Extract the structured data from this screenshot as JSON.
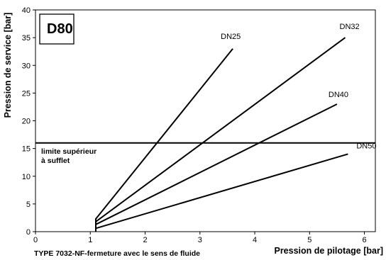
{
  "chart_data": {
    "type": "line",
    "box_title": "D80",
    "xlabel": "Pression de pilotage [bar]",
    "ylabel": "Pression de service [bar]",
    "footer": "TYPE 7032-NF-fermeture avec le sens de fluide",
    "xlim": [
      0,
      6.2
    ],
    "ylim": [
      0,
      40
    ],
    "x_ticks": [
      0,
      1,
      2,
      3,
      4,
      5,
      6
    ],
    "y_ticks": [
      0,
      5,
      10,
      15,
      20,
      25,
      30,
      35,
      40
    ],
    "grid": false,
    "series": [
      {
        "name": "DN25",
        "points": [
          [
            1.1,
            0
          ],
          [
            1.1,
            2.3
          ],
          [
            3.6,
            33
          ]
        ]
      },
      {
        "name": "DN32",
        "points": [
          [
            1.1,
            0
          ],
          [
            1.1,
            1.8
          ],
          [
            5.65,
            35
          ]
        ]
      },
      {
        "name": "DN40",
        "points": [
          [
            1.1,
            0
          ],
          [
            1.1,
            1.3
          ],
          [
            5.5,
            23
          ]
        ]
      },
      {
        "name": "DN50",
        "points": [
          [
            1.1,
            0
          ],
          [
            1.1,
            0.6
          ],
          [
            5.7,
            14
          ]
        ]
      }
    ],
    "reference_line": {
      "y": 16,
      "label_line1": "limite supérieur",
      "label_line2": "à sufflet"
    }
  }
}
